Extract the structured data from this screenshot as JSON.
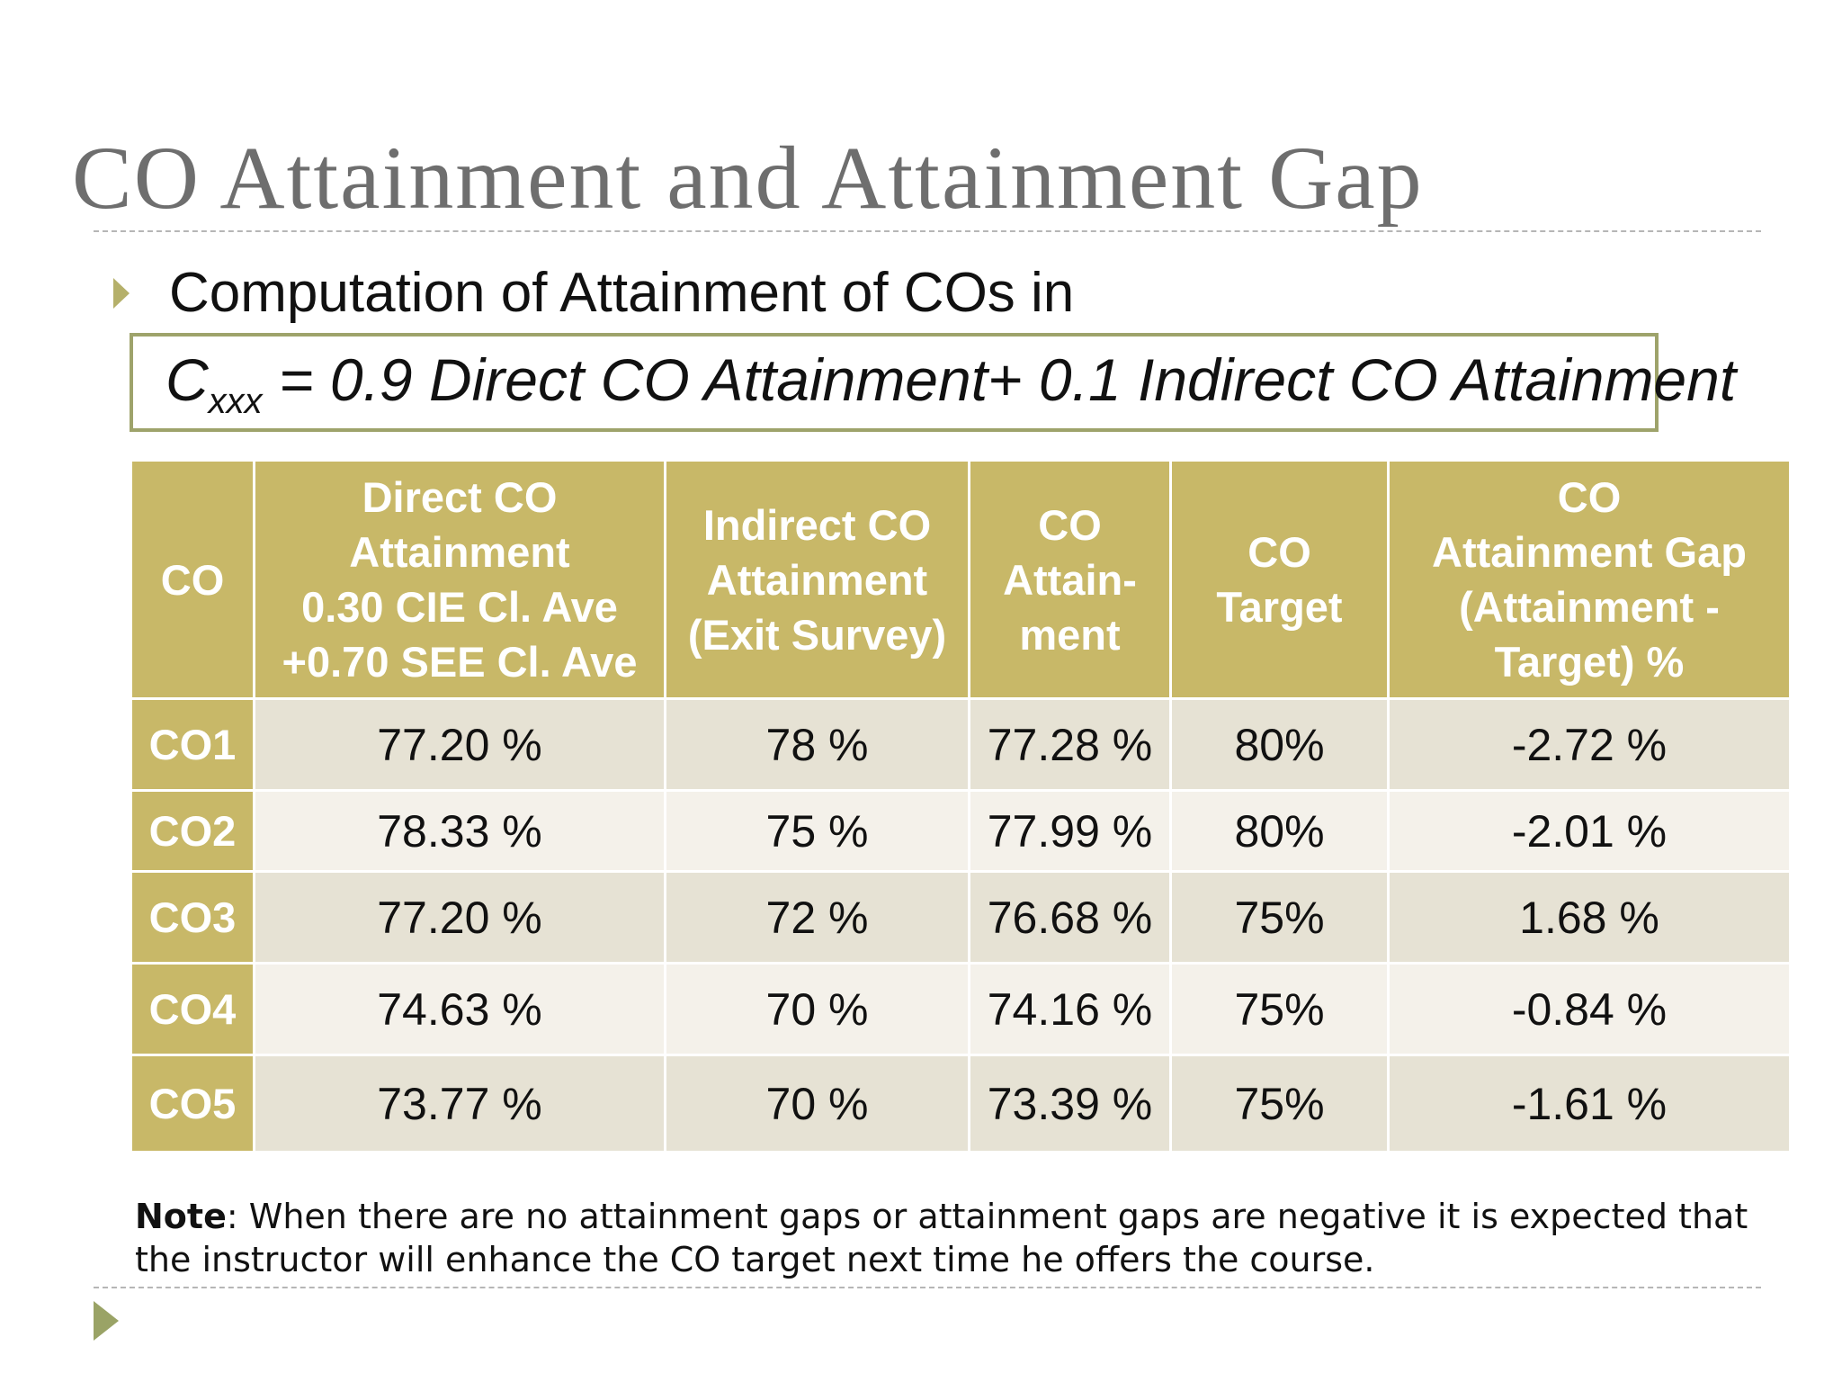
{
  "title": "CO Attainment and Attainment Gap",
  "bullet": {
    "icon": "triangle-bullet-icon",
    "text": "Computation of Attainment of COs in"
  },
  "formula": {
    "symbol": "C",
    "subscript": "xxx",
    "expression": " = 0.9 Direct CO Attainment+ 0.1 Indirect CO Attainment"
  },
  "table": {
    "headers": [
      [
        "CO"
      ],
      [
        "Direct CO",
        "Attainment",
        "0.30 CIE Cl. Ave",
        "+0.70 SEE Cl. Ave"
      ],
      [
        "Indirect CO",
        "Attainment",
        "(Exit Survey)"
      ],
      [
        "CO",
        "Attain-",
        "ment"
      ],
      [
        "CO",
        "Target"
      ],
      [
        "CO",
        "Attainment Gap",
        "(Attainment -",
        "Target) %"
      ]
    ],
    "rows": [
      [
        "CO1",
        "77.20 %",
        "78 %",
        "77.28 %",
        "80%",
        "-2.72 %"
      ],
      [
        "CO2",
        "78.33 %",
        "75 %",
        "77.99 %",
        "80%",
        "-2.01 %"
      ],
      [
        "CO3",
        "77.20 %",
        "72 %",
        "76.68 %",
        "75%",
        "1.68 %"
      ],
      [
        "CO4",
        "74.63 %",
        "70 %",
        "74.16 %",
        "75%",
        "-0.84 %"
      ],
      [
        "CO5",
        "73.77 %",
        "70 %",
        "73.39 %",
        "75%",
        "-1.61 %"
      ]
    ]
  },
  "note": {
    "label": "Note",
    "text": ": When there are no attainment gaps or attainment gaps are negative it is expected that the instructor will enhance the CO target next time he offers the course."
  },
  "nav": {
    "icon": "next-slide-arrow-icon"
  },
  "colors": {
    "header_bg": "#c8b868",
    "row_band_dark": "#e6e2d4",
    "row_band_light": "#f4f1ea",
    "title_text": "#6e6e6e",
    "accent": "#9ea36b"
  }
}
